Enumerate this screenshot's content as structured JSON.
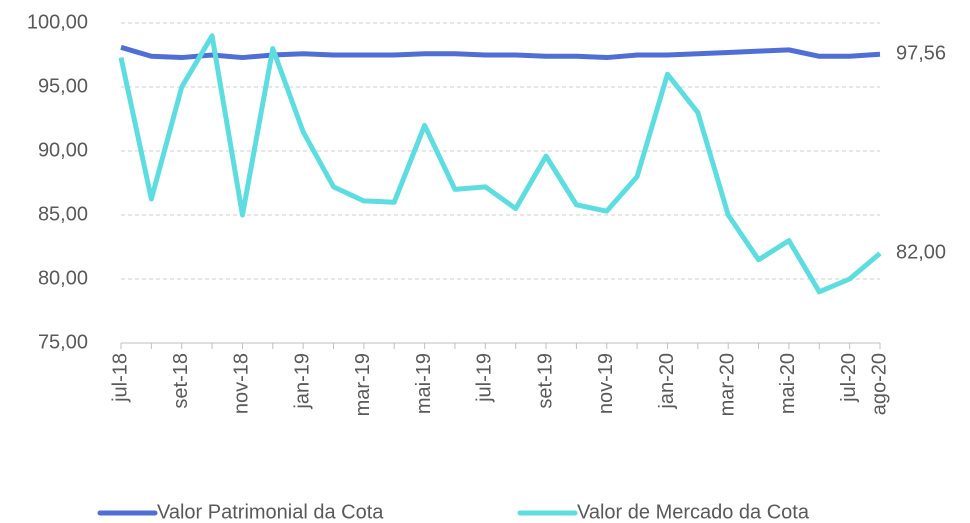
{
  "chart_data": {
    "type": "line",
    "categories": [
      "jul-18",
      null,
      "set-18",
      null,
      "nov-18",
      null,
      "jan-19",
      null,
      "mar-19",
      null,
      "mai-19",
      null,
      "jul-19",
      null,
      "set-19",
      null,
      "nov-19",
      null,
      "jan-20",
      null,
      "mar-20",
      null,
      "mai-20",
      null,
      "jul-20",
      "ago-20"
    ],
    "series": [
      {
        "name": "Valor Patrimonial da Cota",
        "color": "#4f6fd6",
        "values": [
          98.1,
          97.4,
          97.3,
          97.5,
          97.3,
          97.5,
          97.6,
          97.5,
          97.5,
          97.5,
          97.6,
          97.6,
          97.5,
          97.5,
          97.4,
          97.4,
          97.3,
          97.5,
          97.5,
          97.6,
          97.7,
          97.8,
          97.9,
          97.4,
          97.4,
          97.56
        ],
        "value_labels": [
          null,
          null,
          null,
          null,
          null,
          null,
          null,
          null,
          null,
          null,
          null,
          null,
          null,
          null,
          null,
          null,
          null,
          null,
          null,
          null,
          null,
          null,
          null,
          null,
          null,
          "97,56"
        ]
      },
      {
        "name": "Valor de Mercado da Cota",
        "color": "#5ddde0",
        "values": [
          97.3,
          86.25,
          95,
          99,
          85,
          98,
          91.5,
          87.2,
          86.1,
          86,
          92,
          87,
          87.2,
          85.5,
          89.6,
          85.8,
          85.3,
          88,
          96,
          93,
          85,
          81.5,
          83,
          79,
          80,
          82
        ],
        "value_labels": [
          null,
          null,
          null,
          null,
          null,
          null,
          null,
          null,
          null,
          null,
          null,
          null,
          null,
          null,
          null,
          null,
          null,
          null,
          null,
          null,
          null,
          null,
          null,
          null,
          null,
          "82,00"
        ]
      }
    ],
    "ylim": [
      75,
      100
    ],
    "yticks": [
      {
        "value": 75,
        "label": "75,00"
      },
      {
        "value": 80,
        "label": "80,00"
      },
      {
        "value": 85,
        "label": "85,00"
      },
      {
        "value": 90,
        "label": "90,00"
      },
      {
        "value": 95,
        "label": "95,00"
      },
      {
        "value": 100,
        "label": "100,00"
      }
    ],
    "grid": true,
    "legend": "bottom"
  }
}
